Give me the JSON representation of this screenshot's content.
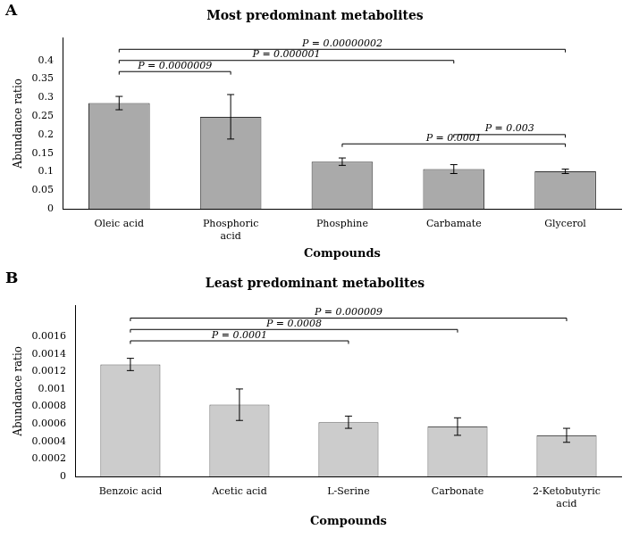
{
  "chart_data": [
    {
      "type": "bar",
      "panel_label": "A",
      "title": "Most predominant metabolites",
      "xlabel": "Compounds",
      "ylabel": "Abundance ratio",
      "categories": [
        "Oleic acid",
        "Phosphoric\nacid",
        "Phosphine",
        "Carbamate",
        "Glycerol"
      ],
      "values": [
        0.285,
        0.248,
        0.127,
        0.107,
        0.101
      ],
      "errors": [
        0.018,
        0.06,
        0.01,
        0.012,
        0.006
      ],
      "color": "#aaaaaa",
      "ylim": [
        0,
        0.46
      ],
      "yticks": [
        0,
        0.05,
        0.1,
        0.15,
        0.2,
        0.25,
        0.3,
        0.35,
        0.4
      ],
      "grid": false,
      "annotations": [
        {
          "x1": "Oleic acid",
          "x2": "Phosphoric\nacid",
          "y": 0.37,
          "label": "P = 0.0000009"
        },
        {
          "x1": "Oleic acid",
          "x2": "Carbamate",
          "y": 0.4,
          "label": "P = 0.000001"
        },
        {
          "x1": "Oleic acid",
          "x2": "Glycerol",
          "y": 0.43,
          "label": "P = 0.00000002"
        },
        {
          "x1": "Phosphine",
          "x2": "Glycerol",
          "y": 0.175,
          "label": "P = 0.0001"
        },
        {
          "x1": "Carbamate",
          "x2": "Glycerol",
          "y": 0.2,
          "label": "P = 0.003"
        }
      ]
    },
    {
      "type": "bar",
      "panel_label": "B",
      "title": "Least predominant metabolites",
      "xlabel": "Compounds",
      "ylabel": "Abundance ratio",
      "categories": [
        "Benzoic acid",
        "Acetic acid",
        "L-Serine",
        "Carbonate",
        "2-Ketobutyric\nacid"
      ],
      "values": [
        0.00128,
        0.00082,
        0.00062,
        0.00057,
        0.00047
      ],
      "errors": [
        7e-05,
        0.00018,
        7e-05,
        0.0001,
        8e-05
      ],
      "color": "#cccccc",
      "ylim": [
        0,
        0.00195
      ],
      "yticks": [
        0,
        0.0002,
        0.0004,
        0.0006,
        0.0008,
        0.001,
        0.0012,
        0.0014,
        0.0016
      ],
      "grid": false,
      "annotations": [
        {
          "x1": "Benzoic acid",
          "x2": "L-Serine",
          "y": 0.00155,
          "label": "P = 0.0001"
        },
        {
          "x1": "Benzoic acid",
          "x2": "Carbonate",
          "y": 0.00168,
          "label": "P = 0.0008"
        },
        {
          "x1": "Benzoic acid",
          "x2": "2-Ketobutyric\nacid",
          "y": 0.00181,
          "label": "P = 0.000009"
        }
      ]
    }
  ]
}
